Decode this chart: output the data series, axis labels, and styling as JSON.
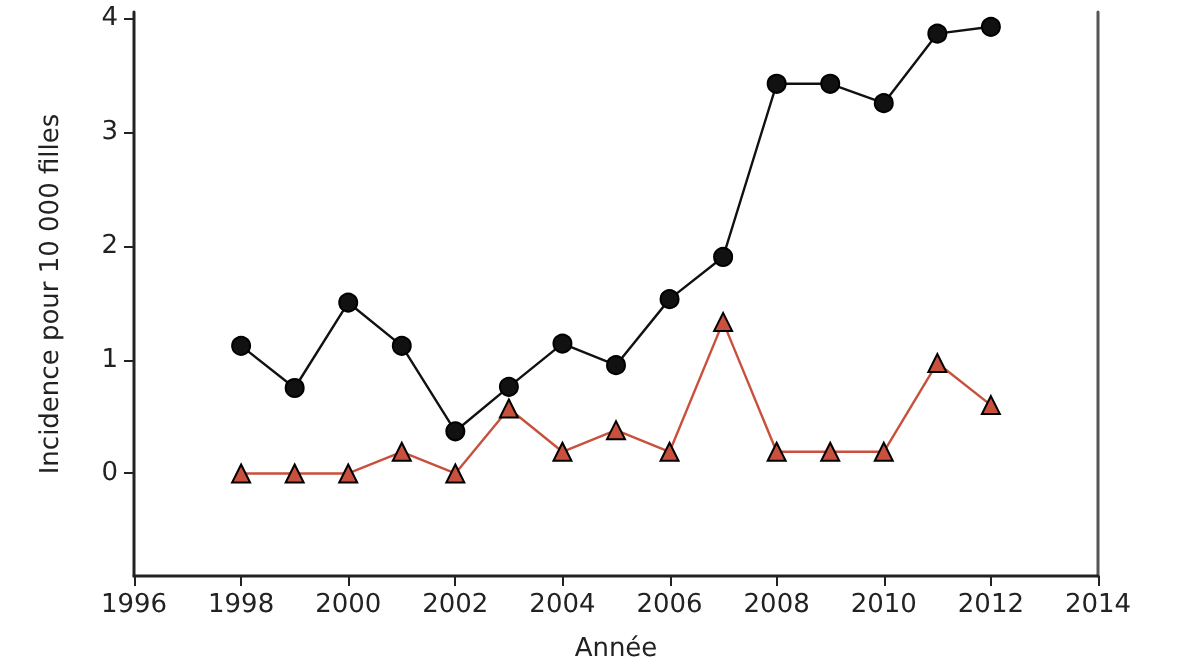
{
  "chart_data": {
    "type": "line",
    "xlabel": "Année",
    "ylabel": "Incidence pour 10 000 filles",
    "x": [
      1998,
      1999,
      2000,
      2001,
      2002,
      2003,
      2004,
      2005,
      2006,
      2007,
      2008,
      2009,
      2010,
      2011,
      2012
    ],
    "series": [
      {
        "color": "#111111",
        "marker": "circle",
        "values": [
          1.12,
          0.75,
          1.5,
          1.12,
          0.37,
          0.76,
          1.14,
          0.95,
          1.53,
          1.9,
          3.42,
          3.42,
          3.25,
          3.86,
          3.92
        ]
      },
      {
        "color": "#c8503c",
        "marker": "triangle",
        "values": [
          0,
          0,
          0,
          0.19,
          0,
          0.57,
          0.19,
          0.38,
          0.19,
          1.33,
          0.19,
          0.19,
          0.19,
          0.97,
          0.6
        ]
      }
    ],
    "xlim": [
      1996,
      2014
    ],
    "xticks": [
      1996,
      1998,
      2000,
      2002,
      2004,
      2006,
      2008,
      2010,
      2012,
      2014
    ],
    "ylim": [
      -0.9,
      4.05
    ],
    "yticks": [
      0,
      1,
      2,
      3,
      4
    ]
  }
}
